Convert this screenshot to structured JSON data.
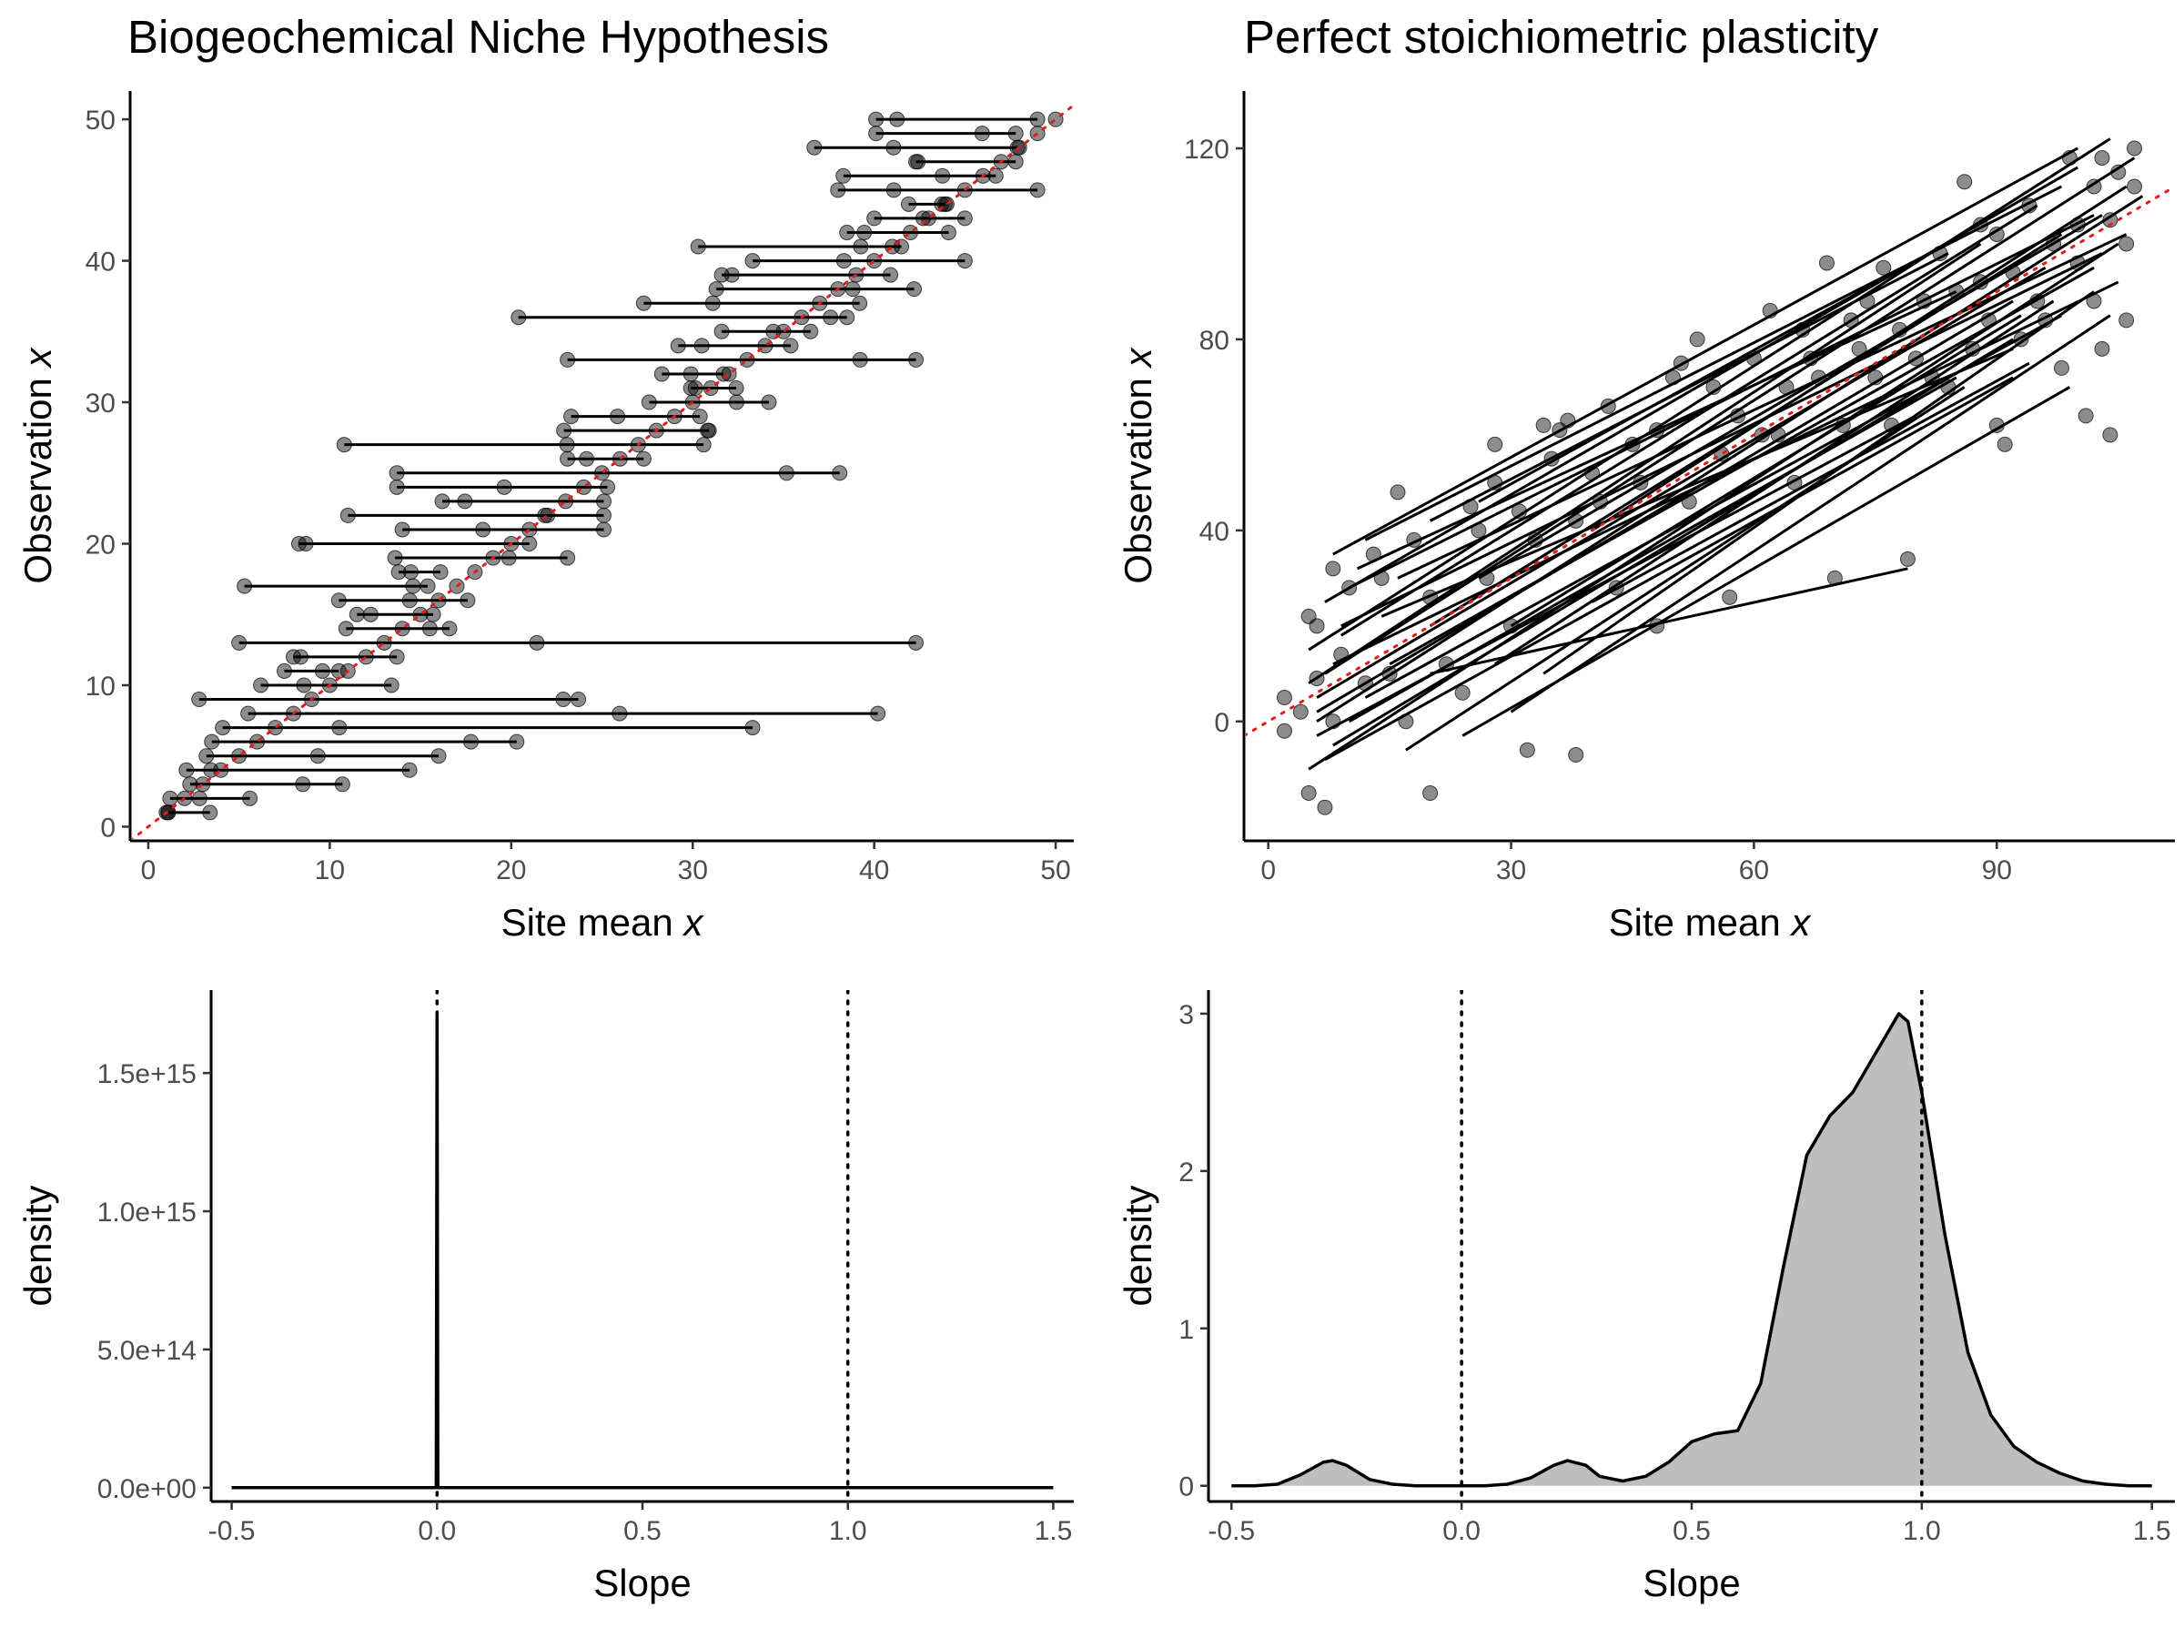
{
  "chart_data": [
    {
      "panel": "top-left",
      "type": "scatter",
      "title": "Biogeochemical Niche Hypothesis",
      "xlabel": "Site mean x",
      "ylabel": "Observation x",
      "xlim": [
        -1,
        51
      ],
      "ylim": [
        -1,
        52
      ],
      "xticks": [
        0,
        10,
        20,
        30,
        40,
        50
      ],
      "yticks": [
        0,
        10,
        20,
        30,
        40,
        50
      ],
      "reference_line": {
        "slope": 1,
        "intercept": 0,
        "color": "#e31a1c",
        "style": "dotted"
      },
      "segments": [
        {
          "y": 1,
          "x0": 1.1,
          "x1": 3.4
        },
        {
          "y": 2,
          "x0": 1.2,
          "x1": 5.6
        },
        {
          "y": 3,
          "x0": 2.3,
          "x1": 10.7
        },
        {
          "y": 4,
          "x0": 2.1,
          "x1": 14.4
        },
        {
          "y": 5,
          "x0": 3.2,
          "x1": 16.0
        },
        {
          "y": 6,
          "x0": 3.5,
          "x1": 20.3
        },
        {
          "y": 7,
          "x0": 4.1,
          "x1": 33.3
        },
        {
          "y": 8,
          "x0": 5.5,
          "x1": 40.2
        },
        {
          "y": 9,
          "x0": 2.8,
          "x1": 23.7
        },
        {
          "y": 10,
          "x0": 6.2,
          "x1": 13.4
        },
        {
          "y": 11,
          "x0": 7.5,
          "x1": 10.5
        },
        {
          "y": 12,
          "x0": 8.0,
          "x1": 13.7
        },
        {
          "y": 13,
          "x0": 5.0,
          "x1": 42.3
        },
        {
          "y": 14,
          "x0": 10.9,
          "x1": 16.6
        },
        {
          "y": 15,
          "x0": 11.5,
          "x1": 15.7
        },
        {
          "y": 16,
          "x0": 10.5,
          "x1": 17.6
        },
        {
          "y": 17,
          "x0": 5.3,
          "x1": 15.4
        },
        {
          "y": 18,
          "x0": 13.8,
          "x1": 16.1
        },
        {
          "y": 19,
          "x0": 13.6,
          "x1": 23.1
        },
        {
          "y": 20,
          "x0": 8.3,
          "x1": 21.0
        },
        {
          "y": 21,
          "x0": 14.0,
          "x1": 25.1
        },
        {
          "y": 22,
          "x0": 11.0,
          "x1": 25.1
        },
        {
          "y": 23,
          "x0": 16.2,
          "x1": 25.1
        },
        {
          "y": 24,
          "x0": 13.7,
          "x1": 25.3
        },
        {
          "y": 25,
          "x0": 13.7,
          "x1": 38.1
        },
        {
          "y": 26,
          "x0": 23.1,
          "x1": 27.3
        },
        {
          "y": 27,
          "x0": 10.8,
          "x1": 30.6
        },
        {
          "y": 28,
          "x0": 22.9,
          "x1": 30.9
        },
        {
          "y": 29,
          "x0": 23.3,
          "x1": 30.4
        },
        {
          "y": 30,
          "x0": 27.6,
          "x1": 34.2
        },
        {
          "y": 31,
          "x0": 29.9,
          "x1": 32.4
        },
        {
          "y": 32,
          "x0": 28.3,
          "x1": 31.7
        },
        {
          "y": 33,
          "x0": 23.1,
          "x1": 42.3
        },
        {
          "y": 34,
          "x0": 29.2,
          "x1": 35.4
        },
        {
          "y": 35,
          "x0": 31.6,
          "x1": 36.5
        },
        {
          "y": 36,
          "x0": 20.4,
          "x1": 38.5
        },
        {
          "y": 37,
          "x0": 27.3,
          "x1": 39.2
        },
        {
          "y": 38,
          "x0": 31.3,
          "x1": 42.2
        },
        {
          "y": 39,
          "x0": 31.6,
          "x1": 40.9
        },
        {
          "y": 40,
          "x0": 33.3,
          "x1": 45.0
        },
        {
          "y": 41,
          "x0": 30.3,
          "x1": 41.5
        },
        {
          "y": 42,
          "x0": 38.5,
          "x1": 44.1
        },
        {
          "y": 43,
          "x0": 40.0,
          "x1": 45.0
        },
        {
          "y": 44,
          "x0": 41.9,
          "x1": 43.9
        },
        {
          "y": 45,
          "x0": 38.0,
          "x1": 49.0
        },
        {
          "y": 46,
          "x0": 38.3,
          "x1": 46.7
        },
        {
          "y": 47,
          "x0": 42.3,
          "x1": 47.8
        },
        {
          "y": 48,
          "x0": 36.7,
          "x1": 47.9
        },
        {
          "y": 49,
          "x0": 40.1,
          "x1": 47.8
        },
        {
          "y": 50,
          "x0": 40.1,
          "x1": 49.0
        }
      ]
    },
    {
      "panel": "top-right",
      "type": "scatter",
      "title": "Perfect stoichiometric plasticity",
      "xlabel": "Site mean x",
      "ylabel": "Observation x",
      "xlim": [
        -3,
        112
      ],
      "ylim": [
        -25,
        132
      ],
      "xticks": [
        0,
        30,
        60,
        90
      ],
      "yticks": [
        0,
        40,
        80,
        120
      ],
      "reference_line": {
        "slope": 1,
        "intercept": 0,
        "color": "#e31a1c",
        "style": "dotted"
      },
      "fit_lines": [
        {
          "x0": 5,
          "y0": -10,
          "x1": 105,
          "y1": 100
        },
        {
          "x0": 6,
          "y0": 0,
          "x1": 108,
          "y1": 110
        },
        {
          "x0": 7,
          "y0": 10,
          "x1": 107,
          "y1": 118
        },
        {
          "x0": 5,
          "y0": 15,
          "x1": 104,
          "y1": 122
        },
        {
          "x0": 8,
          "y0": 35,
          "x1": 100,
          "y1": 120
        },
        {
          "x0": 12,
          "y0": 38,
          "x1": 98,
          "y1": 112
        },
        {
          "x0": 10,
          "y0": 28,
          "x1": 102,
          "y1": 106
        },
        {
          "x0": 9,
          "y0": 20,
          "x1": 103,
          "y1": 98
        },
        {
          "x0": 6,
          "y0": 5,
          "x1": 96,
          "y1": 95
        },
        {
          "x0": 8,
          "y0": -5,
          "x1": 92,
          "y1": 80
        },
        {
          "x0": 17,
          "y0": -6,
          "x1": 86,
          "y1": 70
        },
        {
          "x0": 24,
          "y0": -3,
          "x1": 99,
          "y1": 70
        },
        {
          "x0": 30,
          "y0": 2,
          "x1": 104,
          "y1": 85
        },
        {
          "x0": 34,
          "y0": 10,
          "x1": 102,
          "y1": 90
        },
        {
          "x0": 40,
          "y0": 25,
          "x1": 94,
          "y1": 75
        },
        {
          "x0": 20,
          "y0": 10,
          "x1": 79,
          "y1": 32
        },
        {
          "x0": 14,
          "y0": 22,
          "x1": 92,
          "y1": 78
        },
        {
          "x0": 11,
          "y0": 32,
          "x1": 85,
          "y1": 90
        },
        {
          "x0": 20,
          "y0": 42,
          "x1": 84,
          "y1": 98
        },
        {
          "x0": 26,
          "y0": 46,
          "x1": 86,
          "y1": 102
        },
        {
          "x0": 16,
          "y0": 30,
          "x1": 106,
          "y1": 102
        },
        {
          "x0": 7,
          "y0": 25,
          "x1": 100,
          "y1": 116
        },
        {
          "x0": 8,
          "y0": 12,
          "x1": 105,
          "y1": 92
        },
        {
          "x0": 6,
          "y0": 2,
          "x1": 92,
          "y1": 88
        },
        {
          "x0": 7,
          "y0": -8,
          "x1": 92,
          "y1": 72
        },
        {
          "x0": 12,
          "y0": 5,
          "x1": 98,
          "y1": 85
        },
        {
          "x0": 30,
          "y0": 20,
          "x1": 93,
          "y1": 85
        },
        {
          "x0": 5,
          "y0": 8,
          "x1": 88,
          "y1": 100
        },
        {
          "x0": 9,
          "y0": 18,
          "x1": 95,
          "y1": 108
        },
        {
          "x0": 10,
          "y0": 0,
          "x1": 85,
          "y1": 72
        },
        {
          "x0": 26,
          "y0": 30,
          "x1": 103,
          "y1": 106
        },
        {
          "x0": 15,
          "y0": 12,
          "x1": 102,
          "y1": 95
        },
        {
          "x0": 40,
          "y0": 40,
          "x1": 106,
          "y1": 112
        },
        {
          "x0": 20,
          "y0": 20,
          "x1": 98,
          "y1": 102
        },
        {
          "x0": 6,
          "y0": -3,
          "x1": 80,
          "y1": 64
        },
        {
          "x0": 28,
          "y0": 12,
          "x1": 97,
          "y1": 88
        }
      ],
      "points": [
        [
          2,
          5
        ],
        [
          2,
          -2
        ],
        [
          4,
          2
        ],
        [
          5,
          -15
        ],
        [
          6,
          20
        ],
        [
          7,
          -18
        ],
        [
          6,
          9
        ],
        [
          8,
          0
        ],
        [
          9,
          14
        ],
        [
          5,
          22
        ],
        [
          8,
          32
        ],
        [
          10,
          28
        ],
        [
          12,
          8
        ],
        [
          14,
          30
        ],
        [
          13,
          35
        ],
        [
          15,
          10
        ],
        [
          16,
          48
        ],
        [
          17,
          0
        ],
        [
          18,
          38
        ],
        [
          20,
          -15
        ],
        [
          20,
          26
        ],
        [
          22,
          12
        ],
        [
          24,
          6
        ],
        [
          25,
          45
        ],
        [
          26,
          40
        ],
        [
          27,
          30
        ],
        [
          28,
          50
        ],
        [
          28,
          58
        ],
        [
          30,
          20
        ],
        [
          31,
          44
        ],
        [
          32,
          -6
        ],
        [
          33,
          38
        ],
        [
          34,
          62
        ],
        [
          35,
          55
        ],
        [
          36,
          61
        ],
        [
          37,
          63
        ],
        [
          38,
          -7
        ],
        [
          38,
          42
        ],
        [
          40,
          52
        ],
        [
          41,
          46
        ],
        [
          42,
          66
        ],
        [
          43,
          28
        ],
        [
          45,
          58
        ],
        [
          46,
          50
        ],
        [
          48,
          61
        ],
        [
          48,
          20
        ],
        [
          50,
          72
        ],
        [
          51,
          75
        ],
        [
          52,
          46
        ],
        [
          53,
          80
        ],
        [
          55,
          70
        ],
        [
          56,
          56
        ],
        [
          57,
          26
        ],
        [
          58,
          64
        ],
        [
          60,
          76
        ],
        [
          61,
          60
        ],
        [
          62,
          86
        ],
        [
          63,
          60
        ],
        [
          64,
          70
        ],
        [
          65,
          50
        ],
        [
          66,
          82
        ],
        [
          67,
          76
        ],
        [
          68,
          72
        ],
        [
          69,
          96
        ],
        [
          70,
          30
        ],
        [
          71,
          62
        ],
        [
          72,
          84
        ],
        [
          73,
          78
        ],
        [
          74,
          88
        ],
        [
          75,
          72
        ],
        [
          76,
          95
        ],
        [
          77,
          62
        ],
        [
          78,
          82
        ],
        [
          79,
          34
        ],
        [
          80,
          76
        ],
        [
          81,
          88
        ],
        [
          82,
          72
        ],
        [
          83,
          98
        ],
        [
          84,
          70
        ],
        [
          85,
          90
        ],
        [
          86,
          113
        ],
        [
          87,
          78
        ],
        [
          88,
          92
        ],
        [
          88,
          104
        ],
        [
          89,
          84
        ],
        [
          90,
          102
        ],
        [
          90,
          62
        ],
        [
          91,
          58
        ],
        [
          92,
          94
        ],
        [
          93,
          80
        ],
        [
          94,
          108
        ],
        [
          95,
          88
        ],
        [
          96,
          84
        ],
        [
          97,
          100
        ],
        [
          98,
          74
        ],
        [
          99,
          118
        ],
        [
          100,
          104
        ],
        [
          100,
          96
        ],
        [
          101,
          64
        ],
        [
          102,
          88
        ],
        [
          102,
          112
        ],
        [
          103,
          118
        ],
        [
          103,
          78
        ],
        [
          104,
          60
        ],
        [
          104,
          105
        ],
        [
          105,
          115
        ],
        [
          106,
          100
        ],
        [
          106,
          84
        ],
        [
          107,
          112
        ],
        [
          107,
          120
        ]
      ]
    },
    {
      "panel": "bottom-left",
      "type": "area",
      "xlabel": "Slope",
      "ylabel": "density",
      "xlim": [
        -0.55,
        1.55
      ],
      "ylim": [
        -50000000000000.0,
        1800000000000000.0
      ],
      "xticks": [
        -0.5,
        0.0,
        0.5,
        1.0,
        1.5
      ],
      "xtick_labels": [
        "-0.5",
        "0.0",
        "0.5",
        "1.0",
        "1.5"
      ],
      "yticks": [
        0,
        500000000000000.0,
        1000000000000000.0,
        1500000000000000.0
      ],
      "ytick_labels": [
        "0.0e+00",
        "5.0e+14",
        "1.0e+15",
        "1.5e+15"
      ],
      "vlines": [
        0.0,
        1.0
      ],
      "x": [
        -0.5,
        -0.004,
        -0.002,
        0.0,
        0.002,
        0.004,
        1.5
      ],
      "y": [
        0,
        0,
        0,
        1710000000000000.0,
        0,
        0,
        0
      ]
    },
    {
      "panel": "bottom-right",
      "type": "area",
      "xlabel": "Slope",
      "ylabel": "density",
      "xlim": [
        -0.55,
        1.55
      ],
      "ylim": [
        -0.1,
        3.15
      ],
      "xticks": [
        -0.5,
        0.0,
        0.5,
        1.0,
        1.5
      ],
      "xtick_labels": [
        "-0.5",
        "0.0",
        "0.5",
        "1.0",
        "1.5"
      ],
      "yticks": [
        0,
        1,
        2,
        3
      ],
      "ytick_labels": [
        "0",
        "1",
        "2",
        "3"
      ],
      "vlines": [
        0.0,
        1.0
      ],
      "fill_color": "#bebebe",
      "x": [
        -0.5,
        -0.45,
        -0.4,
        -0.35,
        -0.3,
        -0.28,
        -0.25,
        -0.2,
        -0.15,
        -0.1,
        -0.05,
        0.0,
        0.05,
        0.1,
        0.15,
        0.2,
        0.23,
        0.27,
        0.3,
        0.35,
        0.4,
        0.45,
        0.5,
        0.55,
        0.6,
        0.65,
        0.7,
        0.75,
        0.8,
        0.85,
        0.9,
        0.95,
        0.97,
        1.0,
        1.05,
        1.1,
        1.15,
        1.2,
        1.25,
        1.3,
        1.35,
        1.4,
        1.45,
        1.5
      ],
      "y": [
        0,
        0,
        0.01,
        0.07,
        0.15,
        0.16,
        0.13,
        0.04,
        0.01,
        0,
        0,
        0,
        0,
        0.01,
        0.05,
        0.13,
        0.16,
        0.13,
        0.06,
        0.03,
        0.06,
        0.15,
        0.28,
        0.33,
        0.35,
        0.65,
        1.4,
        2.1,
        2.35,
        2.5,
        2.75,
        3.0,
        2.95,
        2.5,
        1.6,
        0.85,
        0.45,
        0.25,
        0.15,
        0.08,
        0.03,
        0.01,
        0,
        0
      ]
    }
  ]
}
